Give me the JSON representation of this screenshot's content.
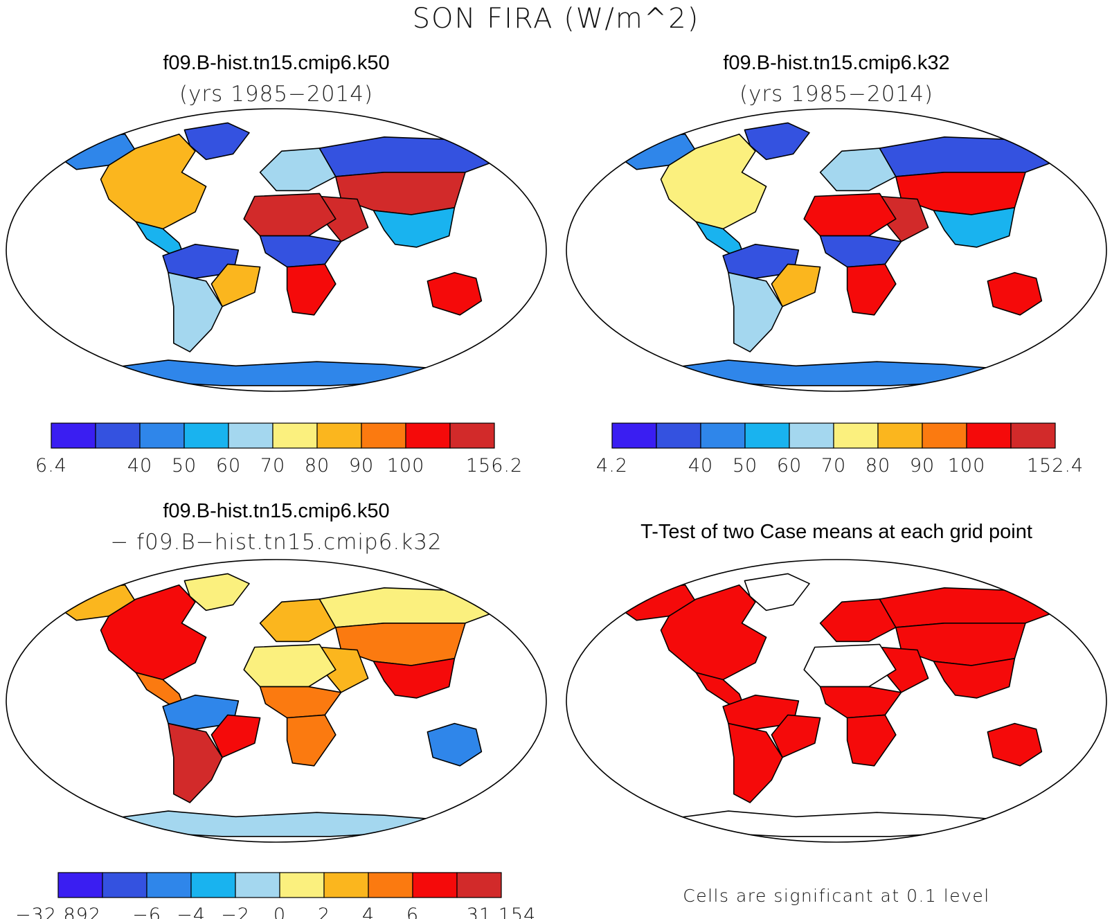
{
  "title": "SON FIRA (W/m^2)",
  "palette": [
    "#3a1ef2",
    "#3452e0",
    "#2f86ea",
    "#19b3ef",
    "#a4d7ef",
    "#fbf07e",
    "#fbb61e",
    "#fb7a10",
    "#f50a0a",
    "#d22a2a"
  ],
  "panels": [
    {
      "id": "k50",
      "title": "f09.B-hist.tn15.cmip6.k50",
      "subtitle": "(yrs 1985−2014)",
      "colorbar": {
        "labels": [
          "6.4",
          "40",
          "50",
          "60",
          "70",
          "80",
          "90",
          "100",
          "156.2"
        ],
        "label_slots": [
          0,
          2,
          3,
          4,
          5,
          6,
          7,
          8,
          10
        ]
      },
      "map": {
        "N_America": 6,
        "Greenland": 1,
        "Alaska": 2,
        "Central_America": 3,
        "S_America_north": 1,
        "S_America_east": 6,
        "S_America_south": 4,
        "Africa_north": 9,
        "Africa_sahel": 1,
        "Africa_south": 8,
        "Arabia": 9,
        "Europe": 4,
        "Asia_north": 1,
        "Asia_central": 9,
        "Asia_south": 3,
        "Australia": 8,
        "Antarctica": 2
      }
    },
    {
      "id": "k32",
      "title": "f09.B-hist.tn15.cmip6.k32",
      "subtitle": "(yrs 1985−2014)",
      "colorbar": {
        "labels": [
          "4.2",
          "40",
          "50",
          "60",
          "70",
          "80",
          "90",
          "100",
          "152.4"
        ],
        "label_slots": [
          0,
          2,
          3,
          4,
          5,
          6,
          7,
          8,
          10
        ]
      },
      "map": {
        "N_America": 5,
        "Greenland": 1,
        "Alaska": 2,
        "Central_America": 3,
        "S_America_north": 1,
        "S_America_east": 6,
        "S_America_south": 4,
        "Africa_north": 8,
        "Africa_sahel": 1,
        "Africa_south": 8,
        "Arabia": 9,
        "Europe": 4,
        "Asia_north": 1,
        "Asia_central": 8,
        "Asia_south": 3,
        "Australia": 8,
        "Antarctica": 2
      }
    },
    {
      "id": "diff",
      "title": "f09.B-hist.tn15.cmip6.k50",
      "subtitle": "− f09.B−hist.tn15.cmip6.k32",
      "colorbar": {
        "labels": [
          "−32.892",
          "−6",
          "−4",
          "−2",
          "0",
          "2",
          "4",
          "6",
          "31.154"
        ],
        "label_slots": [
          0,
          2,
          3,
          4,
          5,
          6,
          7,
          8,
          10
        ]
      },
      "map": {
        "N_America": 8,
        "Greenland": 5,
        "Alaska": 6,
        "Central_America": 7,
        "S_America_north": 2,
        "S_America_east": 8,
        "S_America_south": 9,
        "Africa_north": 5,
        "Africa_sahel": 7,
        "Africa_south": 7,
        "Arabia": 6,
        "Europe": 6,
        "Asia_north": 5,
        "Asia_central": 7,
        "Asia_south": 8,
        "Australia": 2,
        "Antarctica": 4
      }
    },
    {
      "id": "ttest",
      "title": "T-Test of two Case means at each grid point",
      "note": "Cells are significant at 0.1 level",
      "significant_color": "#f50a0a",
      "map": {
        "N_America": 1,
        "Greenland": 0,
        "Alaska": 1,
        "Central_America": 1,
        "S_America_north": 1,
        "S_America_east": 1,
        "S_America_south": 1,
        "Africa_north": 0,
        "Africa_sahel": 1,
        "Africa_south": 1,
        "Arabia": 1,
        "Europe": 1,
        "Asia_north": 1,
        "Asia_central": 1,
        "Asia_south": 1,
        "Australia": 1,
        "Antarctica": 0
      }
    }
  ]
}
